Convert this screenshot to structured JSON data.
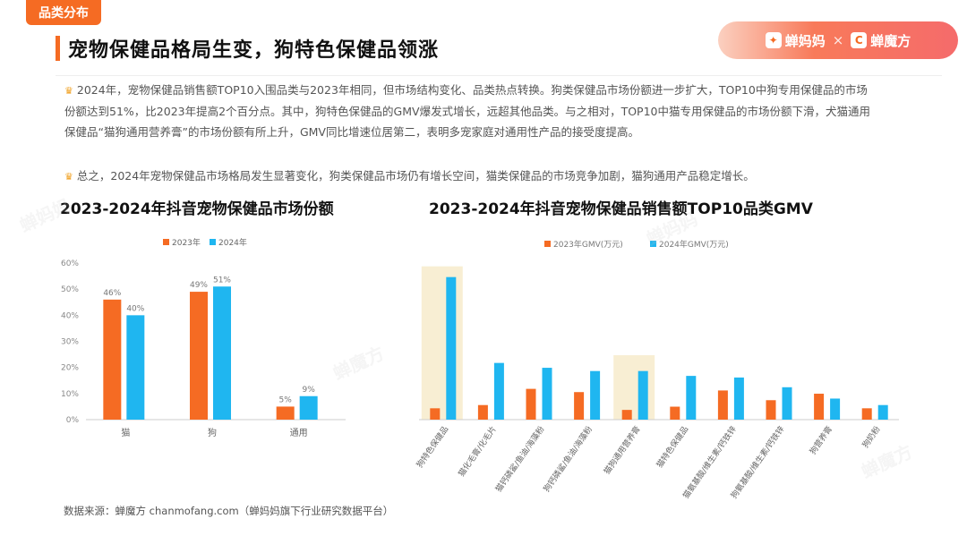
{
  "page": {
    "tag": "品类分布",
    "title": "宠物保健品格局生变，狗特色保健品领涨",
    "brand_left": "蝉妈妈",
    "brand_sep": "×",
    "brand_right": "蝉魔方",
    "paragraph1": "2024年，宠物保健品销售额TOP10入围品类与2023年相同，但市场结构变化、品类热点转换。狗类保健品市场份额进一步扩大，TOP10中狗专用保健品的市场份额达到51%，比2023年提高2个百分点。其中，狗特色保健品的GMV爆发式增长，远超其他品类。与之相对，TOP10中猫专用保健品的市场份额下滑，犬猫通用保健品“猫狗通用营养膏”的市场份额有所上升，GMV同比增速位居第二，表明多宠家庭对通用性产品的接受度提高。",
    "paragraph2": "总之，2024年宠物保健品市场格局发生显著变化，狗类保健品市场仍有增长空间，猫类保健品的市场竞争加剧，猫狗通用产品稳定增长。",
    "source": "数据来源：蝉魔方 chanmofang.com（蝉妈妈旗下行业研究数据平台）"
  },
  "colors": {
    "accent": "#f56b23",
    "series_2023": "#f56b23",
    "series_2024": "#1fb6f0",
    "highlight": "#f8eed3"
  },
  "chart_data": [
    {
      "type": "bar",
      "title": "2023-2024年抖音宠物保健品市场份额",
      "categories": [
        "猫",
        "狗",
        "通用"
      ],
      "series": [
        {
          "name": "2023年",
          "values": [
            46,
            49,
            5
          ],
          "labels": [
            "46%",
            "49%",
            "5%"
          ]
        },
        {
          "name": "2024年",
          "values": [
            40,
            51,
            9
          ],
          "labels": [
            "40%",
            "51%",
            "9%"
          ]
        }
      ],
      "ylim": [
        0,
        60
      ],
      "yticks": [
        "0%",
        "10%",
        "20%",
        "30%",
        "40%",
        "50%",
        "60%"
      ],
      "legend": "top",
      "grid": false
    },
    {
      "type": "bar",
      "title": "2023-2024年抖音宠物保健品销售额TOP10品类GMV",
      "categories": [
        "狗特色保健品",
        "猫化毛膏/化毛片",
        "猫钙磷鲨/鱼油/海藻粉",
        "狗钙磷鲨/鱼油/海藻粉",
        "猫狗通用营养膏",
        "猫特色保健品",
        "猫氨基酸/维生素/钙铁锌",
        "狗氨基酸/维生素/钙铁锌",
        "狗营养膏",
        "狗奶粉"
      ],
      "series": [
        {
          "name": "2023年GMV(万元)",
          "values": [
            7,
            9,
            19,
            17,
            6,
            8,
            18,
            12,
            16,
            7
          ]
        },
        {
          "name": "2024年GMV(万元)",
          "values": [
            88,
            35,
            32,
            30,
            30,
            27,
            26,
            20,
            13,
            9
          ]
        }
      ],
      "highlighted_categories": [
        "狗特色保健品",
        "猫狗通用营养膏"
      ],
      "legend": "top",
      "grid": false
    }
  ]
}
